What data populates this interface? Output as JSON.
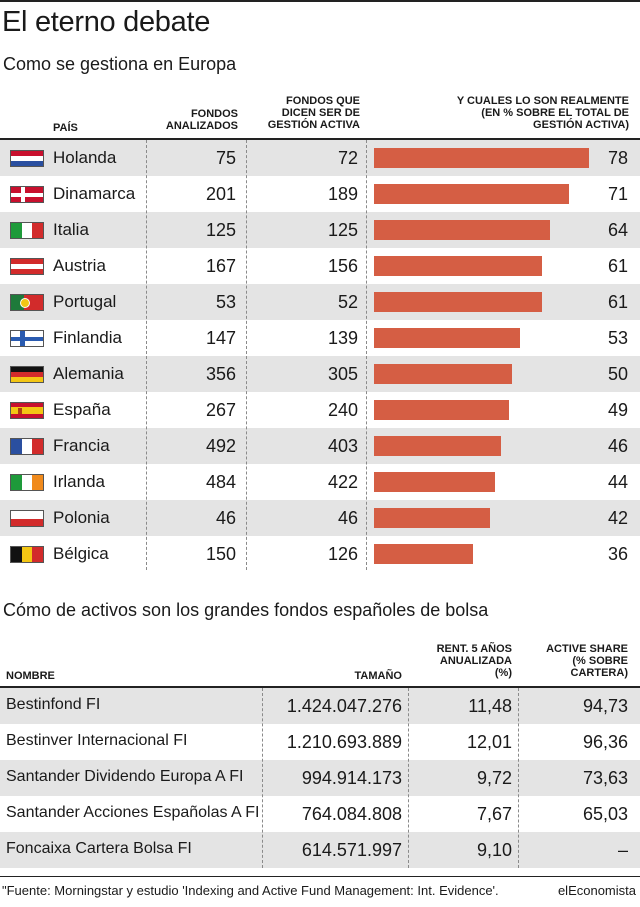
{
  "title": "El eterno debate",
  "subtitle": "Como se gestiona en Europa",
  "headers": {
    "pais": "PAÍS",
    "fondos_analizados": [
      "FONDOS",
      "ANALIZADOS"
    ],
    "fondos_activa": [
      "FONDOS QUE",
      "DICEN SER DE",
      "GESTIÓN ACTIVA"
    ],
    "realmente": [
      "Y CUALES LO SON REALMENTE",
      "(EN % SOBRE EL TOTAL DE",
      "GESTIÓN ACTIVA)"
    ]
  },
  "colors": {
    "bar": "#d55e44",
    "shade": "#e4e4e4"
  },
  "chart_data": {
    "type": "bar",
    "orientation": "horizontal",
    "categories": [
      "Holanda",
      "Dinamarca",
      "Italia",
      "Austria",
      "Portugal",
      "Finlandia",
      "Alemania",
      "España",
      "Francia",
      "Irlanda",
      "Polonia",
      "Bélgica"
    ],
    "flags": [
      "netherlands",
      "denmark",
      "italy",
      "austria",
      "portugal",
      "finland",
      "germany",
      "spain",
      "france",
      "ireland",
      "poland",
      "belgium"
    ],
    "fondos_analizados": [
      75,
      201,
      125,
      167,
      53,
      147,
      356,
      267,
      492,
      484,
      46,
      150
    ],
    "fondos_activa_declarada": [
      72,
      189,
      125,
      156,
      52,
      139,
      305,
      240,
      403,
      422,
      46,
      126
    ],
    "values": [
      78,
      71,
      64,
      61,
      61,
      53,
      50,
      49,
      46,
      44,
      42,
      36
    ],
    "xlim": [
      0,
      100
    ]
  },
  "table2": {
    "title": "Cómo de activos son los grandes fondos españoles de bolsa",
    "headers": {
      "nombre": "NOMBRE",
      "tamano": "TAMAÑO",
      "rent": [
        "RENT. 5 AÑOS",
        "ANUALIZADA",
        "(%)"
      ],
      "active": [
        "ACTIVE SHARE",
        "(% SOBRE",
        "CARTERA)"
      ]
    },
    "rows": [
      {
        "nombre": "Bestinfond FI",
        "tamano": "1.424.047.276",
        "rent": "11,48",
        "active": "94,73"
      },
      {
        "nombre": "Bestinver Internacional FI",
        "tamano": "1.210.693.889",
        "rent": "12,01",
        "active": "96,36"
      },
      {
        "nombre": "Santander Dividendo Europa A FI",
        "tamano": "994.914.173",
        "rent": "9,72",
        "active": "73,63"
      },
      {
        "nombre": "Santander Acciones Españolas A FI",
        "tamano": "764.084.808",
        "rent": "7,67",
        "active": "65,03"
      },
      {
        "nombre": "Foncaixa Cartera Bolsa FI",
        "tamano": "614.571.997",
        "rent": "9,10",
        "active": "–"
      }
    ]
  },
  "footer": "\"Fuente: Morningstar y estudio 'Indexing and Active Fund Management: Int. Evidence'.",
  "brand": "elEconomista"
}
